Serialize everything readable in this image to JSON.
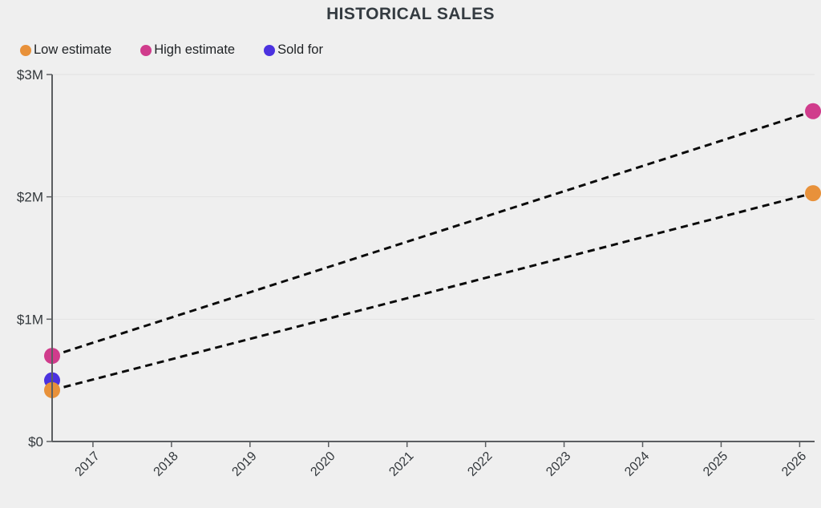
{
  "title": "HISTORICAL SALES",
  "legend": [
    {
      "label": "Low estimate",
      "color": "#E8913A"
    },
    {
      "label": "High estimate",
      "color": "#D03C8C"
    },
    {
      "label": "Sold for",
      "color": "#4B32DF"
    }
  ],
  "colors": {
    "background": "#EFEFEF",
    "axis": "#5B5E61",
    "grid": "#E2E2E2",
    "tick_text": "#33383C",
    "dashed_line": "#0B0B0B"
  },
  "chart_data": {
    "type": "scatter",
    "title": "HISTORICAL SALES",
    "xlabel": "",
    "ylabel": "",
    "grid": "horizontal",
    "legend_position": "top-left",
    "xlim": [
      2016.48,
      2026.19
    ],
    "ylim": [
      0,
      3000000
    ],
    "x_ticks": [
      2017,
      2018,
      2019,
      2020,
      2021,
      2022,
      2023,
      2024,
      2025,
      2026
    ],
    "y_ticks": [
      {
        "value": 0,
        "label": "$0"
      },
      {
        "value": 1000000,
        "label": "$1M"
      },
      {
        "value": 2000000,
        "label": "$2M"
      },
      {
        "value": 3000000,
        "label": "$3M"
      }
    ],
    "series": [
      {
        "name": "High estimate",
        "color": "#D03C8C",
        "line_style": "dashed",
        "points": [
          {
            "x": 2016.48,
            "y": 700000
          },
          {
            "x": 2026.17,
            "y": 2700000
          }
        ]
      },
      {
        "name": "Sold for",
        "color": "#4B32DF",
        "line_style": "none",
        "points": [
          {
            "x": 2016.48,
            "y": 500000
          }
        ]
      },
      {
        "name": "Low estimate",
        "color": "#E8913A",
        "line_style": "dashed",
        "points": [
          {
            "x": 2016.48,
            "y": 420000
          },
          {
            "x": 2026.17,
            "y": 2030000
          }
        ]
      }
    ]
  }
}
